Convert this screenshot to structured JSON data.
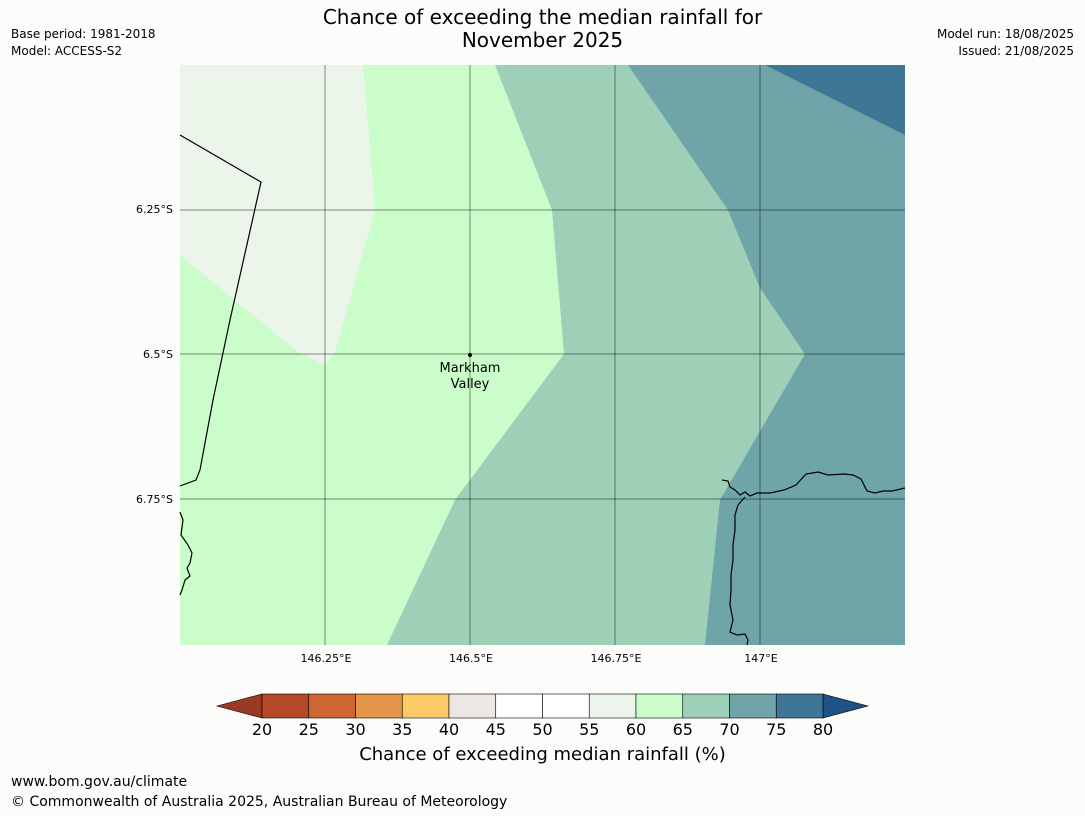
{
  "header": {
    "title_line1": "Chance of exceeding the median rainfall for",
    "title_line2": "November 2025",
    "base_period": "Base period: 1981-2018",
    "model": "Model: ACCESS-S2",
    "model_run": "Model run: 18/08/2025",
    "issued": "Issued: 21/08/2025"
  },
  "map": {
    "lat_labels": [
      "6.25°S",
      "6.5°S",
      "6.75°S"
    ],
    "lon_labels": [
      "146.25°E",
      "146.5°E",
      "146.75°E",
      "147°E"
    ],
    "place": {
      "name_line1": "Markham",
      "name_line2": "Valley"
    },
    "bands": [
      {
        "range": "55-60",
        "color": "#ebf5ea"
      },
      {
        "range": "60-65",
        "color": "#cbfdcb"
      },
      {
        "range": "65-70",
        "color": "#9ed0b8"
      },
      {
        "range": "70-75",
        "color": "#6fa4a8"
      },
      {
        "range": "75-80",
        "color": "#3e7796"
      }
    ]
  },
  "colorbar": {
    "ticks": [
      "20",
      "25",
      "30",
      "35",
      "40",
      "45",
      "50",
      "55",
      "60",
      "65",
      "70",
      "75",
      "80"
    ],
    "colors": [
      "#b44827",
      "#cf6530",
      "#e29546",
      "#fdca68",
      "#ede7e4",
      "#ffffff",
      "#ffffff",
      "#ebf5ea",
      "#cbfdcb",
      "#9ed0b8",
      "#6fa4a8",
      "#3e7796"
    ],
    "under_color": "#9b3a24",
    "over_color": "#1f5286",
    "label": "Chance of exceeding median rainfall (%)"
  },
  "footer": {
    "url": "www.bom.gov.au/climate",
    "copyright": "© Commonwealth of Australia 2025, Australian Bureau of Meteorology"
  }
}
